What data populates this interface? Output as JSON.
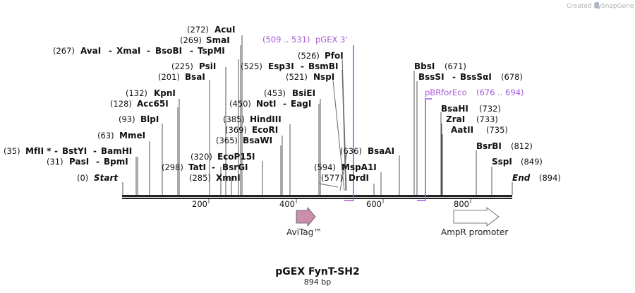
{
  "credit": {
    "prefix": "Created by",
    "brand": "SnapGene"
  },
  "title": "pGEX FynT-SH2",
  "length_label": "894 bp",
  "ticks": [
    "200",
    "400",
    "600",
    "800"
  ],
  "enzymes": [
    {
      "pos": "(272)",
      "name": "AcuI"
    },
    {
      "pos": "(269)",
      "name": "SmaI"
    },
    {
      "pos": "(267)",
      "name": "AvaI",
      "n2": "XmaI",
      "n3": "BsoBI",
      "n4": "TspMI"
    },
    {
      "pos": "(225)",
      "name": "PsiI"
    },
    {
      "pos": "(525)",
      "name": "Esp3I",
      "n2": "BsmBI"
    },
    {
      "pos": "(526)",
      "name": "PfoI"
    },
    {
      "pos": "(201)",
      "name": "BsaI"
    },
    {
      "pos": "(521)",
      "name": "NspI"
    },
    {
      "pos": "(132)",
      "name": "KpnI"
    },
    {
      "pos": "(453)",
      "name": "BsiEI"
    },
    {
      "pos": "(128)",
      "name": "Acc65I"
    },
    {
      "pos": "(450)",
      "name": "NotI",
      "n2": "EagI"
    },
    {
      "pos": "(93)",
      "name": "BlpI"
    },
    {
      "pos": "(385)",
      "name": "HindIII"
    },
    {
      "pos": "(369)",
      "name": "EcoRI"
    },
    {
      "pos": "(63)",
      "name": "MmeI"
    },
    {
      "pos": "(365)",
      "name": "BsaWI"
    },
    {
      "pos": "(35)",
      "name": "MfII *",
      "n2": "BstYI",
      "n3": "BamHI"
    },
    {
      "pos": "(636)",
      "name": "BsaAI"
    },
    {
      "pos": "(320)",
      "name": "EcoP15I"
    },
    {
      "pos": "(31)",
      "name": "PasI",
      "n2": "BpmI"
    },
    {
      "pos": "(298)",
      "name": "TatI",
      "n2": "BsrGI"
    },
    {
      "pos": "(594)",
      "name": "MspA1I"
    },
    {
      "pos": "(285)",
      "name": "XmnI"
    },
    {
      "pos": "(577)",
      "name": "DrdI"
    },
    {
      "pos": "(0)",
      "name": "Start"
    },
    {
      "pos": "(894)",
      "name": "End"
    },
    {
      "pos": "(671)",
      "name": "BbsI"
    },
    {
      "pos": "(678)",
      "name": "BssSI",
      "n2": "BssSαI"
    },
    {
      "pos": "(732)",
      "name": "BsaHI"
    },
    {
      "pos": "(733)",
      "name": "ZraI"
    },
    {
      "pos": "(735)",
      "name": "AatII"
    },
    {
      "pos": "(812)",
      "name": "BsrBI"
    },
    {
      "pos": "(849)",
      "name": "SspI"
    }
  ],
  "primers": [
    {
      "name": "pGEX 3'",
      "range": "(509 .. 531)"
    },
    {
      "name": "pBRforEco",
      "range": "(676 .. 694)"
    }
  ],
  "features": [
    {
      "name": "AviTag™"
    },
    {
      "name": "AmpR promoter"
    }
  ],
  "colors": {
    "primer": "#a35ad6",
    "avitag": "#cc8fab",
    "promoter": "#ffffff"
  }
}
